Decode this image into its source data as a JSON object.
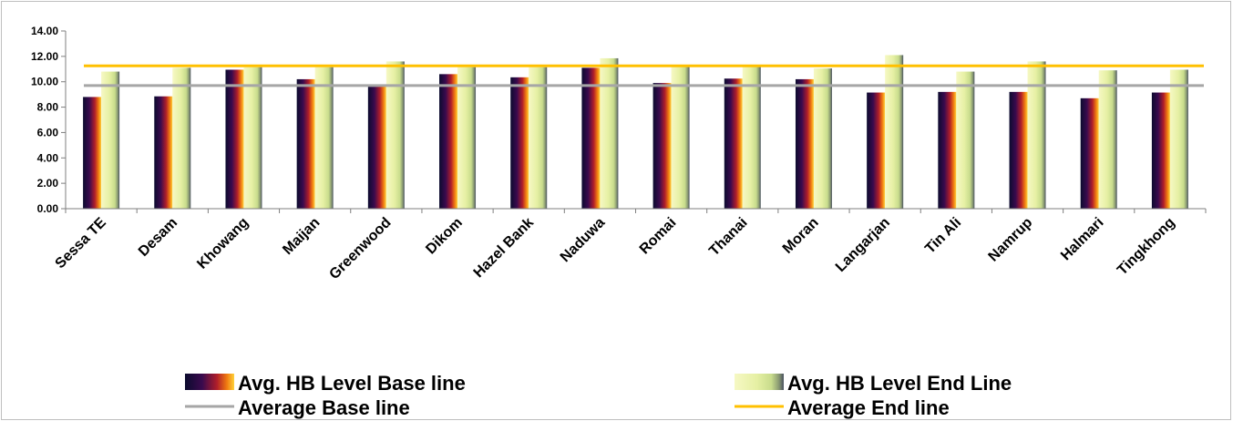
{
  "chart_data": {
    "type": "bar",
    "categories": [
      "Sessa TE",
      "Desam",
      "Khowang",
      "Maijan",
      "Greenwood",
      "Dikom",
      "Hazel Bank",
      "Naduwa",
      "Romai",
      "Thanai",
      "Moran",
      "Langarjan",
      "Tin Ali",
      "Namrup",
      "Halmari",
      "Tingkhong"
    ],
    "series": [
      {
        "name": "Avg. HB Level Base line",
        "values": [
          8.8,
          8.85,
          10.95,
          10.2,
          9.65,
          10.6,
          10.35,
          11.1,
          9.9,
          10.25,
          10.2,
          9.15,
          9.2,
          9.2,
          8.7,
          9.15
        ]
      },
      {
        "name": "Avg. HB Level End Line",
        "values": [
          10.8,
          11.1,
          11.15,
          11.15,
          11.6,
          11.15,
          11.15,
          11.85,
          11.2,
          11.2,
          11.05,
          12.1,
          10.8,
          11.6,
          10.9,
          10.95
        ]
      }
    ],
    "reference_lines": [
      {
        "name": "Average Base line",
        "value": 9.7,
        "color": "#a6a6a6"
      },
      {
        "name": "Average End line",
        "value": 11.25,
        "color": "#ffc000"
      }
    ],
    "yticks": [
      "0.00",
      "2.00",
      "4.00",
      "6.00",
      "8.00",
      "10.00",
      "12.00",
      "14.00"
    ],
    "ylim": [
      0,
      14
    ],
    "grid": false,
    "legend_position": "bottom",
    "title": "",
    "xlabel": "",
    "ylabel": ""
  }
}
